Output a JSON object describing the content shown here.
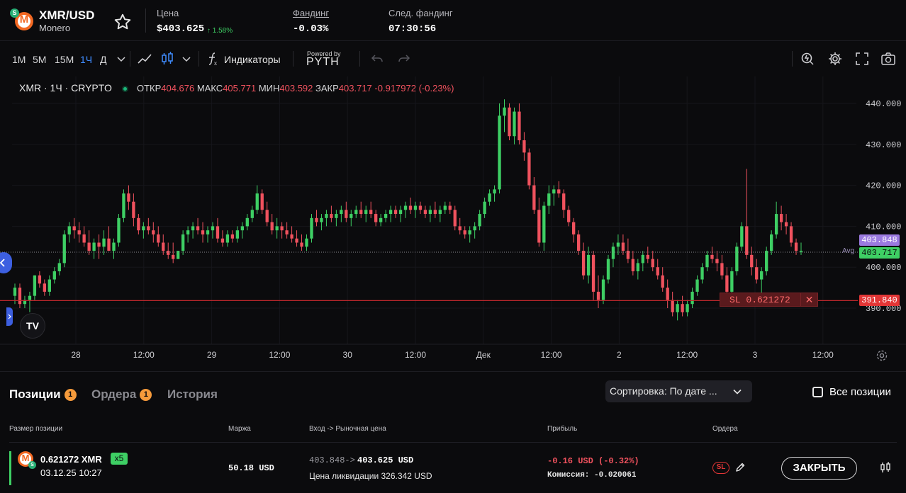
{
  "header": {
    "pair": "XMR/USD",
    "name": "Monero",
    "logo_letter": "M",
    "badge_letter": "S",
    "price_label": "Цена",
    "price": "$403.625",
    "price_change": "↑ 1.58%",
    "funding_label": "Фандинг",
    "funding": "-0.03%",
    "next_funding_label": "След. фандинг",
    "next_funding": "07:30:56"
  },
  "toolbar": {
    "timeframes": [
      "1M",
      "5M",
      "15M",
      "1Ч",
      "Д"
    ],
    "active_timeframe": "1Ч",
    "indicators_label": "Индикаторы",
    "powered_by": "Powered by",
    "pyth": "PYTH"
  },
  "chart": {
    "symbol": "XMR · 1Ч · CRYPTO",
    "open_label": "ОТКР",
    "open": "404.676",
    "high_label": "МАКС",
    "high": "405.771",
    "low_label": "МИН",
    "low": "403.592",
    "close_label": "ЗАКР",
    "close": "403.717",
    "change": "-0.917972 (-0.23%)",
    "avg_label": "Avg",
    "avg_tag": "403.848",
    "last_tag": "403.717",
    "sl_tag": "391.840",
    "sl_text": "SL 0.621272",
    "sl_close": "✕",
    "tv_logo": "TV"
  },
  "chart_data": {
    "type": "candlestick",
    "y_ticks": [
      "440.000",
      "430.000",
      "420.000",
      "410.000",
      "400.000",
      "390.000"
    ],
    "x_ticks": [
      "28",
      "12:00",
      "29",
      "12:00",
      "30",
      "12:00",
      "Дек",
      "12:00",
      "2",
      "12:00",
      "3",
      "12:00"
    ],
    "ylim": [
      386,
      443
    ],
    "avg_price": 403.848,
    "last_price": 403.717,
    "sl_price": 391.84,
    "ohlc": [
      [
        393,
        396,
        391,
        395
      ],
      [
        395,
        396,
        390,
        391
      ],
      [
        391,
        393,
        390,
        392
      ],
      [
        392,
        394,
        389,
        393
      ],
      [
        393,
        398,
        392,
        398
      ],
      [
        398,
        399,
        395,
        396
      ],
      [
        396,
        397,
        393,
        394
      ],
      [
        394,
        398,
        393,
        397
      ],
      [
        397,
        400,
        396,
        399
      ],
      [
        399,
        402,
        398,
        401
      ],
      [
        401,
        409,
        400,
        408
      ],
      [
        408,
        411,
        406,
        410
      ],
      [
        410,
        412,
        407,
        409
      ],
      [
        409,
        411,
        406,
        408
      ],
      [
        408,
        410,
        405,
        406
      ],
      [
        406,
        409,
        403,
        404
      ],
      [
        404,
        407,
        402,
        406
      ],
      [
        406,
        408,
        402,
        405
      ],
      [
        405,
        409,
        403,
        407
      ],
      [
        407,
        410,
        404,
        404
      ],
      [
        404,
        407,
        402,
        406
      ],
      [
        406,
        413,
        405,
        412
      ],
      [
        412,
        419,
        411,
        418
      ],
      [
        418,
        420,
        414,
        416
      ],
      [
        416,
        418,
        410,
        412
      ],
      [
        412,
        413,
        408,
        409
      ],
      [
        409,
        411,
        407,
        410
      ],
      [
        410,
        412,
        408,
        409
      ],
      [
        409,
        411,
        406,
        408
      ],
      [
        408,
        410,
        405,
        406
      ],
      [
        406,
        408,
        403,
        404
      ],
      [
        404,
        406,
        402,
        403
      ],
      [
        403,
        406,
        401,
        402
      ],
      [
        402,
        404,
        402,
        404
      ],
      [
        404,
        409,
        403,
        408
      ],
      [
        408,
        410,
        406,
        409
      ],
      [
        409,
        411,
        407,
        410
      ],
      [
        410,
        412,
        408,
        409
      ],
      [
        409,
        411,
        406,
        408
      ],
      [
        408,
        410,
        406,
        409
      ],
      [
        409,
        411,
        407,
        410
      ],
      [
        410,
        412,
        406,
        407
      ],
      [
        407,
        409,
        405,
        406
      ],
      [
        406,
        409,
        405,
        408
      ],
      [
        408,
        409,
        406,
        407
      ],
      [
        407,
        410,
        406,
        409
      ],
      [
        409,
        411,
        407,
        410
      ],
      [
        410,
        413,
        409,
        412
      ],
      [
        412,
        415,
        411,
        414
      ],
      [
        414,
        420,
        413,
        418
      ],
      [
        418,
        419,
        413,
        414
      ],
      [
        414,
        416,
        410,
        411
      ],
      [
        411,
        413,
        408,
        409
      ],
      [
        409,
        412,
        407,
        410
      ],
      [
        410,
        411,
        407,
        409
      ],
      [
        409,
        411,
        407,
        408
      ],
      [
        408,
        410,
        406,
        407
      ],
      [
        407,
        409,
        405,
        406
      ],
      [
        406,
        408,
        404,
        405
      ],
      [
        405,
        408,
        404,
        407
      ],
      [
        407,
        413,
        406,
        412
      ],
      [
        412,
        414,
        410,
        411
      ],
      [
        411,
        413,
        409,
        412
      ],
      [
        412,
        414,
        410,
        413
      ],
      [
        413,
        415,
        411,
        412
      ],
      [
        412,
        414,
        410,
        413
      ],
      [
        413,
        415,
        411,
        414
      ],
      [
        414,
        416,
        411,
        412
      ],
      [
        412,
        414,
        410,
        413
      ],
      [
        413,
        415,
        412,
        414
      ],
      [
        414,
        416,
        412,
        413
      ],
      [
        413,
        415,
        411,
        414
      ],
      [
        414,
        416,
        412,
        413
      ],
      [
        413,
        414,
        410,
        411
      ],
      [
        411,
        413,
        410,
        412
      ],
      [
        412,
        414,
        411,
        413
      ],
      [
        413,
        415,
        411,
        414
      ],
      [
        414,
        415,
        412,
        413
      ],
      [
        413,
        415,
        411,
        414
      ],
      [
        414,
        416,
        412,
        415
      ],
      [
        415,
        417,
        413,
        414
      ],
      [
        414,
        416,
        412,
        415
      ],
      [
        415,
        416,
        413,
        414
      ],
      [
        414,
        415,
        412,
        413
      ],
      [
        413,
        415,
        411,
        414
      ],
      [
        414,
        416,
        412,
        413
      ],
      [
        413,
        415,
        411,
        414
      ],
      [
        414,
        416,
        413,
        415
      ],
      [
        415,
        416,
        413,
        414
      ],
      [
        414,
        415,
        409,
        410
      ],
      [
        410,
        412,
        408,
        409
      ],
      [
        409,
        410,
        407,
        408
      ],
      [
        408,
        410,
        406,
        409
      ],
      [
        409,
        411,
        407,
        410
      ],
      [
        410,
        414,
        409,
        413
      ],
      [
        413,
        417,
        412,
        416
      ],
      [
        416,
        419,
        415,
        418
      ],
      [
        418,
        420,
        416,
        419
      ],
      [
        419,
        440,
        418,
        437
      ],
      [
        437,
        441,
        433,
        439
      ],
      [
        439,
        440,
        431,
        432
      ],
      [
        432,
        439,
        430,
        438
      ],
      [
        438,
        440,
        430,
        431
      ],
      [
        431,
        433,
        426,
        428
      ],
      [
        428,
        429,
        419,
        420
      ],
      [
        420,
        422,
        413,
        414
      ],
      [
        414,
        417,
        405,
        406
      ],
      [
        406,
        416,
        404,
        415
      ],
      [
        415,
        420,
        413,
        418
      ],
      [
        418,
        420,
        415,
        419
      ],
      [
        419,
        421,
        417,
        418
      ],
      [
        418,
        419,
        412,
        414
      ],
      [
        414,
        415,
        410,
        411
      ],
      [
        411,
        412,
        406,
        408
      ],
      [
        408,
        409,
        403,
        404
      ],
      [
        404,
        406,
        397,
        398
      ],
      [
        398,
        405,
        396,
        403
      ],
      [
        403,
        404,
        392,
        394
      ],
      [
        394,
        398,
        390,
        392
      ],
      [
        392,
        398,
        391,
        397
      ],
      [
        397,
        403,
        396,
        402
      ],
      [
        402,
        406,
        400,
        405
      ],
      [
        405,
        408,
        403,
        406
      ],
      [
        406,
        408,
        403,
        404
      ],
      [
        404,
        407,
        401,
        402
      ],
      [
        402,
        404,
        398,
        399
      ],
      [
        399,
        402,
        397,
        401
      ],
      [
        401,
        404,
        399,
        403
      ],
      [
        403,
        405,
        401,
        402
      ],
      [
        402,
        404,
        399,
        400
      ],
      [
        400,
        402,
        397,
        398
      ],
      [
        398,
        400,
        394,
        395
      ],
      [
        395,
        397,
        390,
        392
      ],
      [
        392,
        394,
        388,
        389
      ],
      [
        389,
        392,
        387,
        391
      ],
      [
        391,
        393,
        388,
        389
      ],
      [
        389,
        392,
        388,
        391
      ],
      [
        391,
        395,
        390,
        394
      ],
      [
        394,
        398,
        393,
        397
      ],
      [
        397,
        401,
        396,
        400
      ],
      [
        400,
        404,
        399,
        403
      ],
      [
        403,
        405,
        401,
        402
      ],
      [
        402,
        404,
        399,
        401
      ],
      [
        401,
        403,
        397,
        398
      ],
      [
        398,
        400,
        393,
        394
      ],
      [
        394,
        400,
        393,
        399
      ],
      [
        399,
        406,
        398,
        405
      ],
      [
        405,
        411,
        404,
        410
      ],
      [
        410,
        424,
        402,
        403
      ],
      [
        403,
        405,
        398,
        400
      ],
      [
        400,
        402,
        396,
        397
      ],
      [
        397,
        400,
        393,
        399
      ],
      [
        399,
        405,
        398,
        404
      ],
      [
        404,
        409,
        403,
        408
      ],
      [
        408,
        416,
        407,
        413
      ],
      [
        413,
        415,
        409,
        411
      ],
      [
        411,
        413,
        408,
        410
      ],
      [
        410,
        411,
        405,
        406
      ],
      [
        406,
        407,
        403,
        404
      ],
      [
        404,
        406,
        403,
        404
      ]
    ]
  },
  "positions": {
    "tabs": [
      {
        "label": "Позиции",
        "count": "1"
      },
      {
        "label": "Ордера",
        "count": "1"
      },
      {
        "label": "История",
        "count": ""
      }
    ],
    "sort_label": "Сортировка: По дате ...",
    "all_positions": "Все позиции",
    "columns": [
      "Размер позиции",
      "Маржа",
      "Вход -> Рыночная цена",
      "Прибыль",
      "Ордера"
    ],
    "row": {
      "size": "0.621272 XMR",
      "leverage": "x5",
      "open_time": "03.12.25 10:27",
      "margin": "50.18 USD",
      "entry": "403.848->",
      "market": "403.625 USD",
      "liquidation": "Цена ликвидации 326.342 USD",
      "pnl": "-0.16 USD (-0.32%)",
      "fee": "Комиссия: -0.020061",
      "sl_badge": "SL",
      "close_label": "ЗАКРЫТЬ"
    }
  },
  "colors": {
    "up": "#3ecf64",
    "down": "#f0525e",
    "accent": "#3f8cff",
    "sl_line": "#c0282d",
    "avg": "#9b7ae0",
    "badge": "#f59a3b"
  }
}
